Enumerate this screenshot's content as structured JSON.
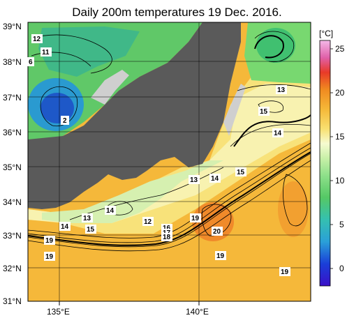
{
  "title": "Daily 200m temperatures 19 Dec. 2016.",
  "colorbar": {
    "unit": "[°C]",
    "ticks": [
      "25",
      "20",
      "15",
      "10",
      "5",
      "0"
    ]
  },
  "axes": {
    "lat_labels": [
      "39°N",
      "38°N",
      "37°N",
      "36°N",
      "35°N",
      "34°N",
      "33°N",
      "32°N",
      "31°N"
    ],
    "lon_labels": [
      "135°E",
      "140°E"
    ]
  },
  "contour_labels": [
    "12",
    "11",
    "6",
    "2",
    "13",
    "15",
    "14",
    "15",
    "14",
    "13",
    "14",
    "13",
    "14",
    "15",
    "12",
    "16",
    "17",
    "18",
    "19",
    "19",
    "19",
    "20",
    "19",
    "19"
  ]
}
